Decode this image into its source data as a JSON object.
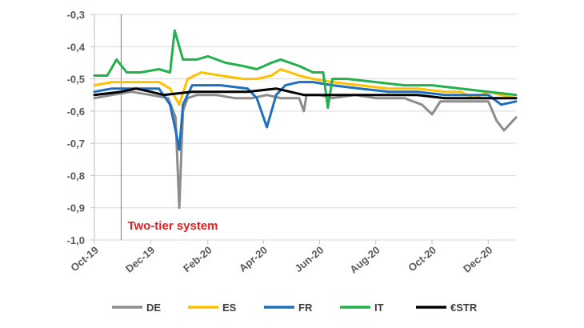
{
  "chart_data": {
    "type": "line",
    "title": "",
    "xlabel": "",
    "ylabel": "",
    "ylim": [
      -1.0,
      -0.3
    ],
    "yticks": [
      -0.3,
      -0.4,
      -0.5,
      -0.6,
      -0.7,
      -0.8,
      -0.9,
      -1.0
    ],
    "ytick_labels": [
      "-0,3",
      "-0,4",
      "-0,5",
      "-0,6",
      "-0,7",
      "-0,8",
      "-0,9",
      "-1,0"
    ],
    "xticks": [
      "2019-10-01",
      "2019-12-01",
      "2020-02-01",
      "2020-04-01",
      "2020-06-01",
      "2020-08-01",
      "2020-10-01",
      "2020-12-01"
    ],
    "xtick_labels": [
      "Oct-19",
      "Dec-19",
      "Feb-20",
      "Apr-20",
      "Jun-20",
      "Aug-20",
      "Oct-20",
      "Dec-20"
    ],
    "xlim": [
      "2019-10-01",
      "2020-12-31"
    ],
    "grid": "horizontal",
    "legend_position": "bottom",
    "annotation": {
      "text": "Two-tier system",
      "x": "2019-10-30",
      "color": "#e02020"
    },
    "series": [
      {
        "name": "DE",
        "color": "#8c8c8c",
        "x": [
          "2019-10-01",
          "2019-10-20",
          "2019-11-10",
          "2019-12-01",
          "2019-12-20",
          "2019-12-28",
          "2020-01-01",
          "2020-01-05",
          "2020-01-10",
          "2020-01-20",
          "2020-02-10",
          "2020-03-01",
          "2020-03-20",
          "2020-04-05",
          "2020-04-20",
          "2020-05-10",
          "2020-05-15",
          "2020-05-18",
          "2020-06-01",
          "2020-06-15",
          "2020-07-10",
          "2020-08-01",
          "2020-09-01",
          "2020-09-20",
          "2020-10-01",
          "2020-10-10",
          "2020-11-01",
          "2020-12-01",
          "2020-12-10",
          "2020-12-18",
          "2020-12-31"
        ],
        "y": [
          -0.56,
          -0.55,
          -0.54,
          -0.55,
          -0.56,
          -0.62,
          -0.9,
          -0.6,
          -0.56,
          -0.55,
          -0.55,
          -0.56,
          -0.56,
          -0.55,
          -0.56,
          -0.56,
          -0.6,
          -0.55,
          -0.55,
          -0.56,
          -0.55,
          -0.56,
          -0.56,
          -0.58,
          -0.61,
          -0.57,
          -0.57,
          -0.57,
          -0.63,
          -0.66,
          -0.62
        ]
      },
      {
        "name": "ES",
        "color": "#ffc000",
        "x": [
          "2019-10-01",
          "2019-10-20",
          "2019-11-15",
          "2019-12-10",
          "2019-12-22",
          "2020-01-01",
          "2020-01-10",
          "2020-01-25",
          "2020-02-15",
          "2020-03-10",
          "2020-03-25",
          "2020-04-10",
          "2020-04-20",
          "2020-05-10",
          "2020-05-25",
          "2020-06-15",
          "2020-07-15",
          "2020-08-15",
          "2020-09-15",
          "2020-10-15",
          "2020-11-01",
          "2020-11-15",
          "2020-12-01",
          "2020-12-15",
          "2020-12-31"
        ],
        "y": [
          -0.52,
          -0.51,
          -0.51,
          -0.51,
          -0.53,
          -0.58,
          -0.5,
          -0.48,
          -0.49,
          -0.5,
          -0.5,
          -0.49,
          -0.47,
          -0.49,
          -0.5,
          -0.51,
          -0.52,
          -0.53,
          -0.53,
          -0.54,
          -0.54,
          -0.56,
          -0.54,
          -0.55,
          -0.56
        ]
      },
      {
        "name": "FR",
        "color": "#1f6fbf",
        "x": [
          "2019-10-01",
          "2019-10-20",
          "2019-11-15",
          "2019-12-10",
          "2019-12-22",
          "2019-12-28",
          "2020-01-01",
          "2020-01-05",
          "2020-01-15",
          "2020-02-15",
          "2020-03-15",
          "2020-03-25",
          "2020-04-05",
          "2020-04-15",
          "2020-04-25",
          "2020-05-10",
          "2020-05-25",
          "2020-06-15",
          "2020-07-15",
          "2020-08-15",
          "2020-09-15",
          "2020-10-15",
          "2020-11-15",
          "2020-12-01",
          "2020-12-15",
          "2020-12-31"
        ],
        "y": [
          -0.54,
          -0.53,
          -0.53,
          -0.53,
          -0.58,
          -0.66,
          -0.72,
          -0.58,
          -0.52,
          -0.52,
          -0.53,
          -0.56,
          -0.65,
          -0.55,
          -0.52,
          -0.51,
          -0.51,
          -0.52,
          -0.53,
          -0.54,
          -0.54,
          -0.55,
          -0.55,
          -0.55,
          -0.58,
          -0.57
        ]
      },
      {
        "name": "IT",
        "color": "#22b14c",
        "x": [
          "2019-10-01",
          "2019-10-15",
          "2019-10-25",
          "2019-11-05",
          "2019-11-20",
          "2019-12-10",
          "2019-12-22",
          "2019-12-27",
          "2020-01-05",
          "2020-01-20",
          "2020-02-01",
          "2020-02-20",
          "2020-03-10",
          "2020-03-25",
          "2020-04-10",
          "2020-04-20",
          "2020-05-10",
          "2020-05-25",
          "2020-06-05",
          "2020-06-10",
          "2020-06-15",
          "2020-07-01",
          "2020-08-01",
          "2020-09-01",
          "2020-10-01",
          "2020-11-01",
          "2020-12-01",
          "2020-12-31"
        ],
        "y": [
          -0.49,
          -0.49,
          -0.44,
          -0.48,
          -0.48,
          -0.47,
          -0.48,
          -0.35,
          -0.44,
          -0.44,
          -0.43,
          -0.45,
          -0.46,
          -0.47,
          -0.45,
          -0.44,
          -0.46,
          -0.48,
          -0.48,
          -0.59,
          -0.5,
          -0.5,
          -0.51,
          -0.52,
          -0.52,
          -0.53,
          -0.54,
          -0.55
        ]
      },
      {
        "name": "€STR",
        "color": "#000000",
        "x": [
          "2019-10-01",
          "2019-10-30",
          "2019-11-15",
          "2019-12-01",
          "2019-12-15",
          "2020-01-15",
          "2020-02-15",
          "2020-03-15",
          "2020-04-15",
          "2020-05-15",
          "2020-06-15",
          "2020-07-15",
          "2020-08-15",
          "2020-09-15",
          "2020-10-15",
          "2020-11-15",
          "2020-12-15",
          "2020-12-31"
        ],
        "y": [
          -0.55,
          -0.54,
          -0.53,
          -0.54,
          -0.55,
          -0.54,
          -0.54,
          -0.54,
          -0.53,
          -0.55,
          -0.55,
          -0.55,
          -0.55,
          -0.55,
          -0.56,
          -0.56,
          -0.56,
          -0.56
        ]
      }
    ]
  }
}
